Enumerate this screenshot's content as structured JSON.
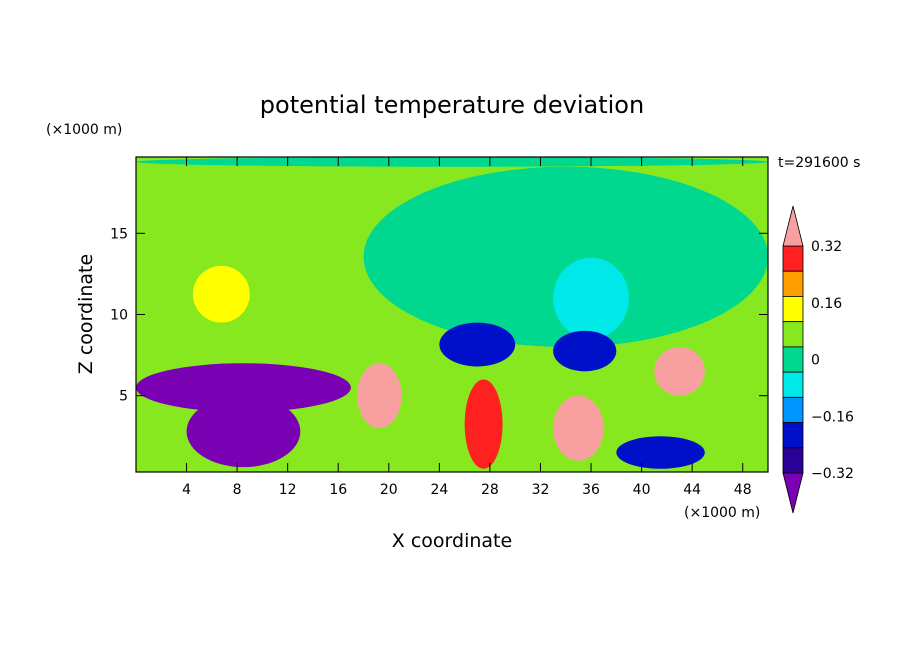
{
  "chart_data": {
    "type": "heatmap",
    "title": "potential temperature deviation",
    "xlabel": "X coordinate",
    "ylabel": "Z coordinate",
    "x_unit_label": "(×1000 m)",
    "y_unit_label": "(×1000 m)",
    "time_label": "t=291600 s",
    "xlim": [
      0,
      50
    ],
    "ylim": [
      0.3,
      19.7
    ],
    "x_ticks": [
      4,
      8,
      12,
      16,
      20,
      24,
      28,
      32,
      36,
      40,
      44,
      48
    ],
    "y_ticks": [
      5,
      10,
      15
    ],
    "colorbar": {
      "levels": [
        -0.4,
        -0.32,
        -0.24,
        -0.16,
        -0.08,
        0,
        0.08,
        0.16,
        0.24,
        0.32,
        0.4
      ],
      "tick_labels": [
        "0.32",
        "0.16",
        "0",
        "−0.16",
        "−0.32"
      ],
      "tick_values": [
        0.32,
        0.16,
        0,
        -0.16,
        -0.32
      ],
      "colors": [
        "#7a00b4",
        "#2a0096",
        "#0010c8",
        "#0096ff",
        "#00e8e8",
        "#00d890",
        "#88e820",
        "#ffff00",
        "#ffa000",
        "#ff2020",
        "#f8a0a0"
      ],
      "extend": "both"
    },
    "background_color": "#88e820",
    "features": [
      {
        "kind": "band",
        "y_range": [
          19.1,
          19.7
        ],
        "color": "#00d890"
      },
      {
        "kind": "region",
        "x_range": [
          18,
          50
        ],
        "y_range": [
          8,
          19.1
        ],
        "color": "#00d890"
      },
      {
        "kind": "region",
        "x_range": [
          4.5,
          9
        ],
        "y_range": [
          9.5,
          13
        ],
        "color": "#ffff00"
      },
      {
        "kind": "region",
        "x_range": [
          33,
          39
        ],
        "y_range": [
          8.5,
          13.5
        ],
        "color": "#00e8e8"
      },
      {
        "kind": "region",
        "x_range": [
          0,
          17
        ],
        "y_range": [
          4,
          7
        ],
        "color": "#7a00b4"
      },
      {
        "kind": "region",
        "x_range": [
          4,
          13
        ],
        "y_range": [
          0.6,
          5
        ],
        "color": "#7a00b4"
      },
      {
        "kind": "region",
        "x_range": [
          17.5,
          21
        ],
        "y_range": [
          3,
          7
        ],
        "color": "#f8a0a0"
      },
      {
        "kind": "region",
        "x_range": [
          26,
          29
        ],
        "y_range": [
          0.5,
          6
        ],
        "color": "#ff2020"
      },
      {
        "kind": "region",
        "x_range": [
          33,
          37
        ],
        "y_range": [
          1,
          5
        ],
        "color": "#f8a0a0"
      },
      {
        "kind": "region",
        "x_range": [
          41,
          45
        ],
        "y_range": [
          5,
          8
        ],
        "color": "#f8a0a0"
      },
      {
        "kind": "region",
        "x_range": [
          38,
          45
        ],
        "y_range": [
          0.5,
          2.5
        ],
        "color": "#0010c8"
      },
      {
        "kind": "region",
        "x_range": [
          24,
          30
        ],
        "y_range": [
          6.8,
          9.5
        ],
        "color": "#0010c8"
      },
      {
        "kind": "region",
        "x_range": [
          33,
          38
        ],
        "y_range": [
          6.5,
          9
        ],
        "color": "#0010c8"
      }
    ]
  }
}
